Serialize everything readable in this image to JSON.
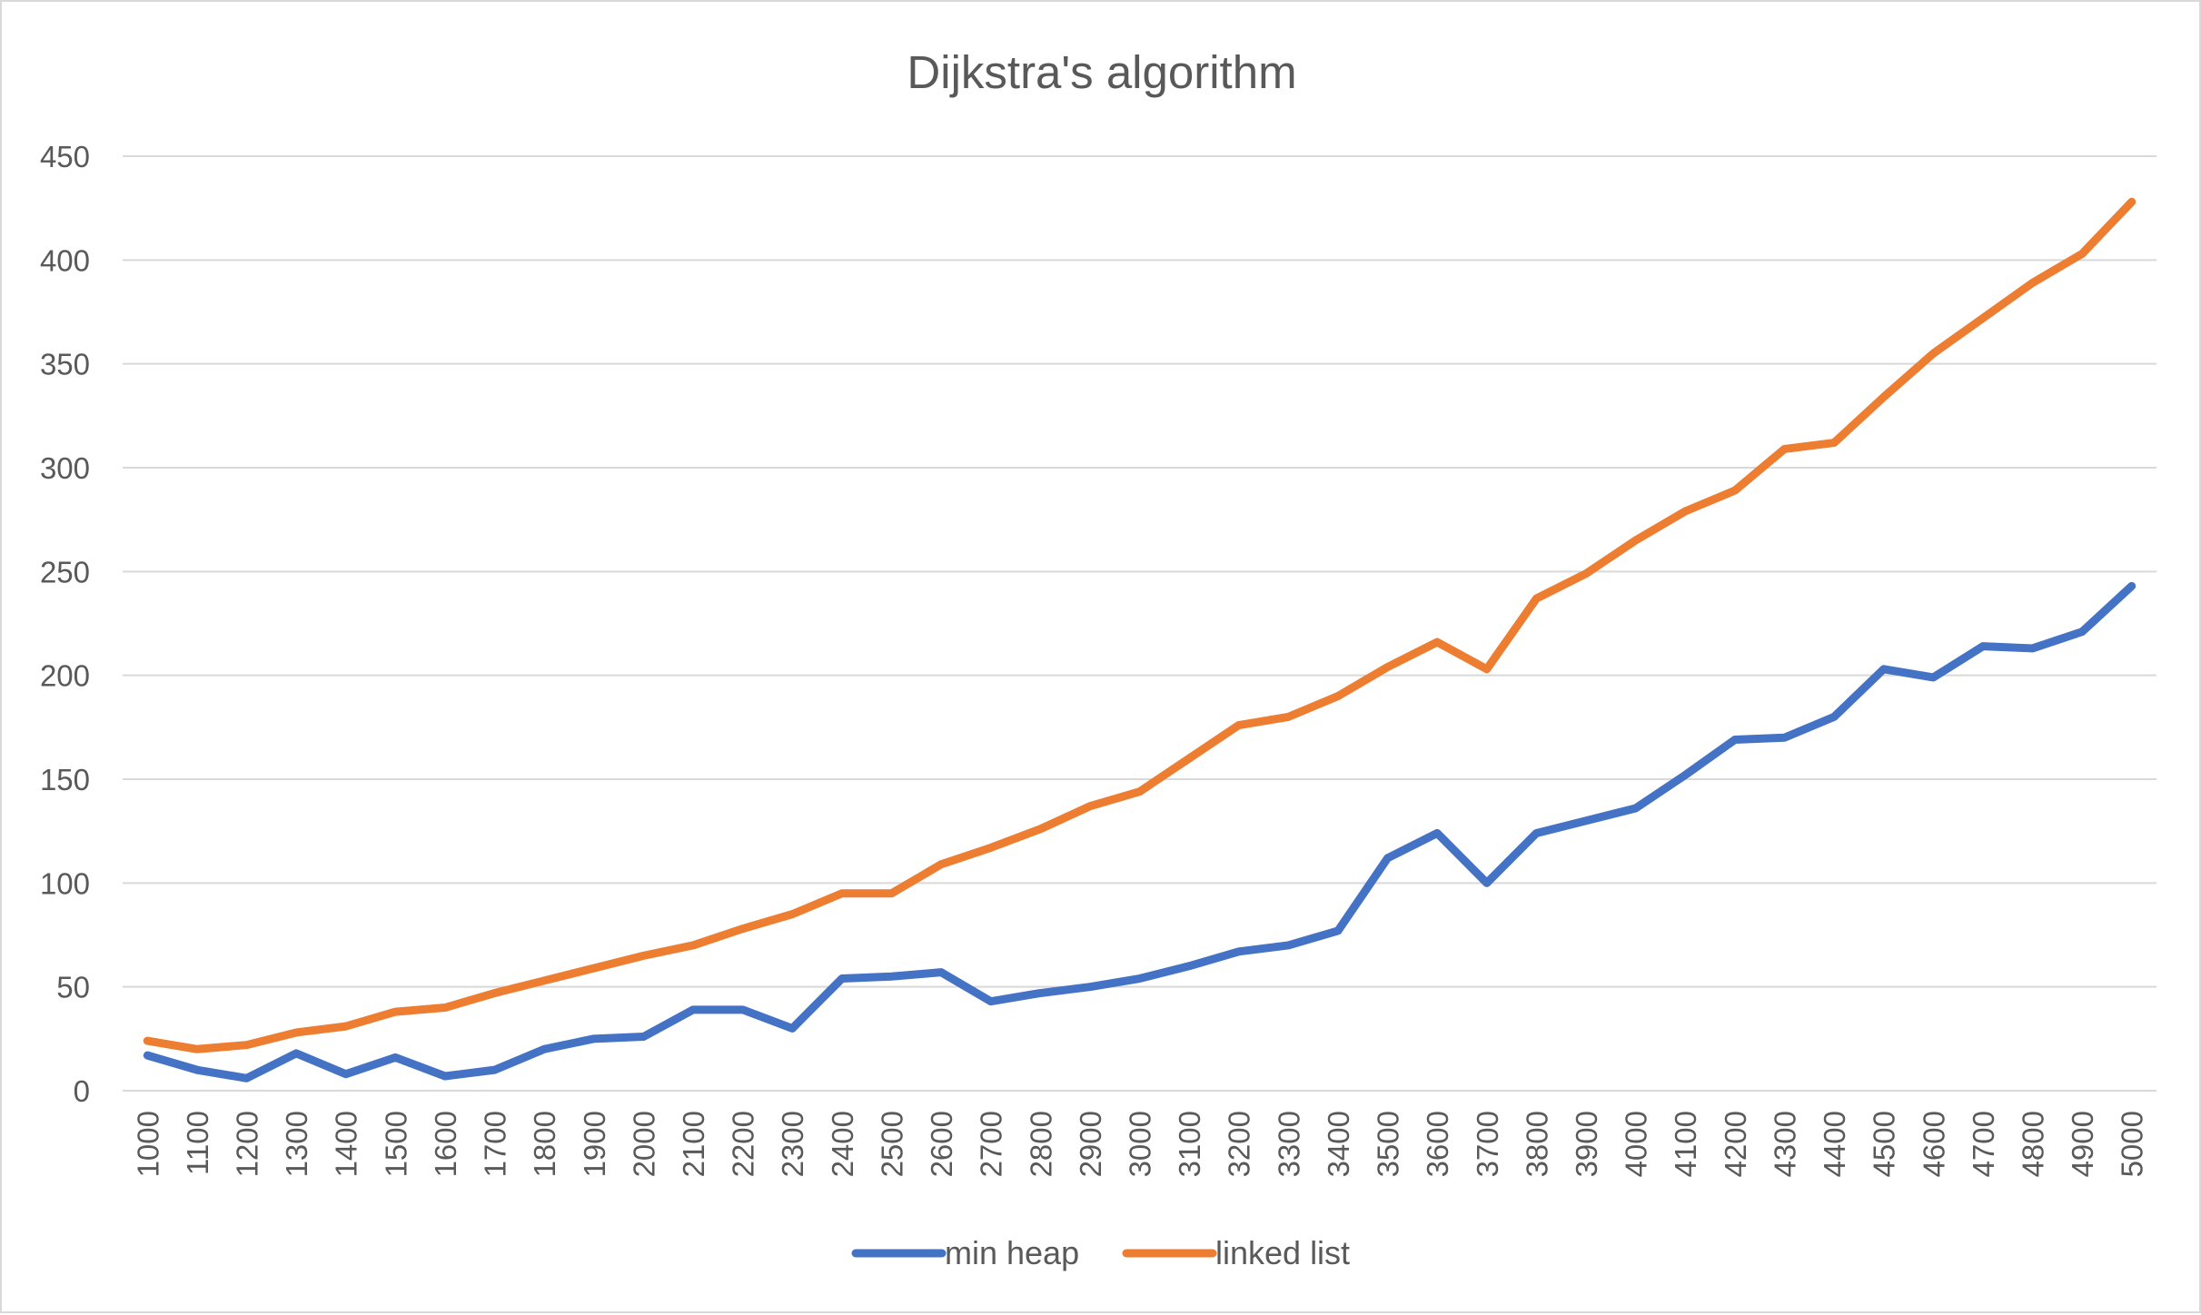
{
  "chart_data": {
    "type": "line",
    "title": "Dijkstra's algorithm",
    "xlabel": "",
    "ylabel": "",
    "categories": [
      "1000",
      "1100",
      "1200",
      "1300",
      "1400",
      "1500",
      "1600",
      "1700",
      "1800",
      "1900",
      "2000",
      "2100",
      "2200",
      "2300",
      "2400",
      "2500",
      "2600",
      "2700",
      "2800",
      "2900",
      "3000",
      "3100",
      "3200",
      "3300",
      "3400",
      "3500",
      "3600",
      "3700",
      "3800",
      "3900",
      "4000",
      "4100",
      "4200",
      "4300",
      "4400",
      "4500",
      "4600",
      "4700",
      "4800",
      "4900",
      "5000"
    ],
    "ylim": [
      0,
      450
    ],
    "yticks": [
      "0",
      "50",
      "100",
      "150",
      "200",
      "250",
      "300",
      "350",
      "400",
      "450"
    ],
    "grid": true,
    "legend_position": "bottom",
    "series": [
      {
        "name": "min heap",
        "color": "#4472c4",
        "values": [
          17,
          10,
          6,
          18,
          8,
          16,
          7,
          10,
          20,
          25,
          26,
          39,
          39,
          30,
          54,
          55,
          57,
          43,
          47,
          50,
          54,
          60,
          67,
          70,
          77,
          112,
          124,
          100,
          124,
          130,
          136,
          152,
          169,
          170,
          180,
          203,
          199,
          214,
          213,
          221,
          243
        ]
      },
      {
        "name": "linked list",
        "color": "#ed7d31",
        "values": [
          24,
          20,
          22,
          28,
          31,
          38,
          40,
          47,
          53,
          59,
          65,
          70,
          78,
          85,
          95,
          95,
          109,
          117,
          126,
          137,
          144,
          160,
          176,
          180,
          190,
          204,
          216,
          203,
          237,
          249,
          265,
          279,
          289,
          309,
          312,
          334,
          355,
          372,
          389,
          403,
          428
        ]
      }
    ]
  }
}
